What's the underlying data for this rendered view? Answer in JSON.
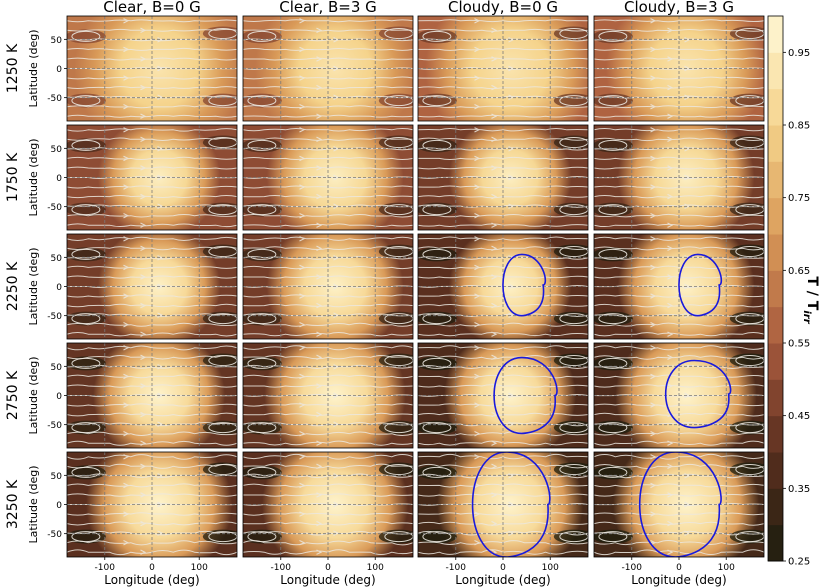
{
  "chart_data": {
    "type": "heatmap",
    "columns": [
      {
        "title": "Clear, B=0 G",
        "clouds": false,
        "B": 0
      },
      {
        "title": "Clear, B=3 G",
        "clouds": false,
        "B": 3
      },
      {
        "title": "Cloudy, B=0 G",
        "clouds": true,
        "B": 0
      },
      {
        "title": "Cloudy, B=3 G",
        "clouds": true,
        "B": 3
      }
    ],
    "rows": [
      {
        "label": "1250 K",
        "hot_a": 95,
        "hot_b": 85,
        "nightside": 0.62,
        "hot_peak": 0.92,
        "cloud_contour": [
          null,
          null,
          null,
          null
        ]
      },
      {
        "label": "1750 K",
        "hot_a": 45,
        "hot_b": 60,
        "nightside": 0.5,
        "hot_peak": 0.96,
        "cloud_contour": [
          null,
          null,
          null,
          null
        ]
      },
      {
        "label": "2250 K",
        "hot_a": 45,
        "hot_b": 60,
        "nightside": 0.45,
        "hot_peak": 0.97,
        "cloud_contour": [
          null,
          null,
          [
            -5,
            85,
            -50,
            55
          ],
          [
            -5,
            85,
            -50,
            55
          ]
        ]
      },
      {
        "label": "2750 K",
        "hot_a": 55,
        "hot_b": 65,
        "nightside": 0.42,
        "hot_peak": 0.98,
        "cloud_contour": [
          null,
          null,
          [
            -30,
            110,
            -65,
            65
          ],
          [
            -40,
            105,
            -55,
            60
          ]
        ]
      },
      {
        "label": "3250 K",
        "hot_a": 70,
        "hot_b": 70,
        "nightside": 0.4,
        "hot_peak": 0.98,
        "cloud_contour": [
          null,
          null,
          [
            -80,
            95,
            -90,
            90
          ],
          [
            -100,
            85,
            -90,
            90
          ]
        ]
      }
    ],
    "xlabel": "Longitude (deg)",
    "ylabel": "Latitude (deg)",
    "xlim": [
      -180,
      180
    ],
    "ylim": [
      -90,
      90
    ],
    "xticks": [
      -100,
      0,
      100
    ],
    "yticks": [
      -50,
      0,
      50
    ],
    "grid": true,
    "colorbar": {
      "label": "T / T",
      "label_sub": "irr",
      "range": [
        0.25,
        1.0
      ],
      "ticks": [
        0.25,
        0.35,
        0.45,
        0.55,
        0.65,
        0.75,
        0.85,
        0.95
      ],
      "tick_labels": [
        "0.25",
        "0.35",
        "0.45",
        "0.55",
        "0.65",
        "0.75",
        "0.85",
        "0.95"
      ]
    },
    "colors": {
      "low": "#1c1d0e",
      "mid_low": "#5a2f1f",
      "mid": "#a85a3e",
      "mid_high": "#d99a58",
      "high": "#f5d38b",
      "top": "#fff8d6",
      "streamline": "#ece8e0",
      "cloud_contour": "#1a1adc",
      "grid": "#7a7a7a"
    }
  }
}
